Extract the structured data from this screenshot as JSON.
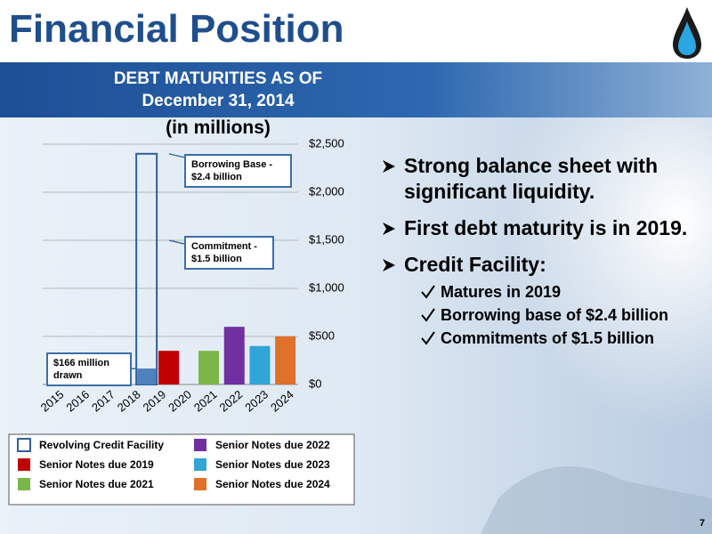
{
  "header": {
    "title": "Financial Position",
    "page_number": "7"
  },
  "chart_data": {
    "type": "bar",
    "title": [
      "DEBT MATURITIES AS OF",
      "December 31, 2014"
    ],
    "subtitle": "(in millions)",
    "categories": [
      "2015",
      "2016",
      "2017",
      "2018",
      "2019",
      "2020",
      "2021",
      "2022",
      "2023",
      "2024"
    ],
    "series": [
      {
        "name": "Revolving Credit Facility",
        "color": "#2f5f98",
        "style": "outline",
        "values": [
          null,
          null,
          null,
          null,
          2400,
          null,
          null,
          null,
          null,
          null
        ]
      },
      {
        "name": "Senior Notes due 2019",
        "color": "#c00000",
        "values": [
          null,
          null,
          null,
          null,
          350,
          null,
          null,
          null,
          null,
          null
        ]
      },
      {
        "name": "Senior Notes due 2021",
        "color": "#7ab648",
        "values": [
          null,
          null,
          null,
          null,
          null,
          null,
          350,
          null,
          null,
          null
        ]
      },
      {
        "name": "Senior Notes due 2022",
        "color": "#7030a0",
        "values": [
          null,
          null,
          null,
          null,
          null,
          null,
          null,
          600,
          null,
          null
        ]
      },
      {
        "name": "Senior Notes due 2023",
        "color": "#31a5d6",
        "values": [
          null,
          null,
          null,
          null,
          null,
          null,
          null,
          null,
          400,
          null
        ]
      },
      {
        "name": "Senior Notes due 2024",
        "color": "#e0702a",
        "values": [
          null,
          null,
          null,
          null,
          null,
          null,
          null,
          null,
          null,
          500
        ]
      }
    ],
    "annotations": [
      {
        "text": "Borrowing Base - $2.4 billion",
        "value": 2400
      },
      {
        "text": "Commitment - $1.5 billion",
        "value": 1500
      },
      {
        "text": "$166 million drawn",
        "value": 166,
        "color": "#4f81bd"
      }
    ],
    "ylim": [
      0,
      2500
    ],
    "yticks": [
      {
        "value": 0,
        "label": "$0"
      },
      {
        "value": 500,
        "label": "$500"
      },
      {
        "value": 1000,
        "label": "$1,000"
      },
      {
        "value": 1500,
        "label": "$1,500"
      },
      {
        "value": 2000,
        "label": "$2,000"
      },
      {
        "value": 2500,
        "label": "$2,500"
      }
    ],
    "grid": true
  },
  "bullets": [
    {
      "text": "Strong balance sheet with significant liquidity."
    },
    {
      "text": "First debt maturity is in 2019."
    },
    {
      "text": "Credit Facility:",
      "sub": [
        "Matures in 2019",
        "Borrowing base of $2.4 billion",
        "Commitments  of $1.5 billion"
      ]
    }
  ]
}
